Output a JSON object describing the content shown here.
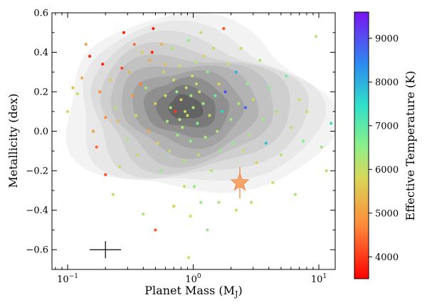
{
  "chart_data": {
    "type": "scatter",
    "xlabel": "Planet Mass (M",
    "xlabel_sub": "J",
    "xlabel_close": ")",
    "ylabel": "Metallicity (dex)",
    "colorbar_label": "Effective Temperature (K)",
    "x_scale": "log",
    "xlim": [
      0.075,
      13.5
    ],
    "ylim": [
      -0.7,
      0.6
    ],
    "x_ticks": [
      {
        "value": 0.1,
        "base": "10",
        "exp": "−1"
      },
      {
        "value": 1,
        "base": "10",
        "exp": "0"
      },
      {
        "value": 10,
        "base": "10",
        "exp": "1"
      }
    ],
    "y_ticks": [
      -0.6,
      -0.4,
      -0.2,
      0.0,
      0.2,
      0.4,
      0.6
    ],
    "y_tick_labels": [
      "−0.6",
      "−0.4",
      "−0.2",
      "0.0",
      "0.2",
      "0.4",
      "0.6"
    ],
    "colorbar": {
      "range": [
        3500,
        9600
      ],
      "ticks": [
        4000,
        5000,
        6000,
        7000,
        8000,
        9000
      ],
      "tick_labels": [
        "4000",
        "5000",
        "6000",
        "7000",
        "8000",
        "9000"
      ],
      "colormap": "rainbow"
    },
    "density_contours": {
      "colors": [
        "#f3f3f3",
        "#e8e8e8",
        "#dcdcdc",
        "#cfcfcf",
        "#c2c2c2",
        "#b3b3b3",
        "#a3a3a3",
        "#8f8f8f",
        "#7a7a7a",
        "#636363"
      ],
      "center": {
        "mass": 0.85,
        "metallicity": 0.12
      }
    },
    "highlight_star": {
      "mass": 2.35,
      "metallicity": -0.26,
      "color": "#f7a36a",
      "errorbar_color": "#e8894a"
    },
    "typical_error": {
      "mass": 0.2,
      "metallicity": -0.6
    },
    "points": [
      {
        "mass": 0.14,
        "metallicity": 0.44,
        "teff": 5100
      },
      {
        "mass": 0.15,
        "metallicity": 0.38,
        "teff": 3900
      },
      {
        "mass": 0.19,
        "metallicity": 0.34,
        "teff": 3800
      },
      {
        "mass": 0.13,
        "metallicity": 0.27,
        "teff": 5200
      },
      {
        "mass": 0.12,
        "metallicity": 0.19,
        "teff": 6000
      },
      {
        "mass": 0.11,
        "metallicity": 0.22,
        "teff": 5400
      },
      {
        "mass": 0.18,
        "metallicity": 0.2,
        "teff": 4800
      },
      {
        "mass": 0.22,
        "metallicity": 0.26,
        "teff": 5600
      },
      {
        "mass": 0.24,
        "metallicity": 0.12,
        "teff": 6200
      },
      {
        "mass": 0.2,
        "metallicity": 0.07,
        "teff": 4700
      },
      {
        "mass": 0.16,
        "metallicity": 0.0,
        "teff": 5000
      },
      {
        "mass": 0.25,
        "metallicity": 0.05,
        "teff": 5500
      },
      {
        "mass": 0.17,
        "metallicity": -0.08,
        "teff": 4400
      },
      {
        "mass": 0.2,
        "metallicity": -0.22,
        "teff": 4200
      },
      {
        "mass": 0.26,
        "metallicity": -0.18,
        "teff": 6000
      },
      {
        "mass": 0.23,
        "metallicity": -0.32,
        "teff": 6100
      },
      {
        "mass": 0.1,
        "metallicity": 0.1,
        "teff": 5800
      },
      {
        "mass": 0.28,
        "metallicity": 0.5,
        "teff": 3800
      },
      {
        "mass": 0.31,
        "metallicity": 0.3,
        "teff": 5300
      },
      {
        "mass": 0.33,
        "metallicity": 0.18,
        "teff": 4900
      },
      {
        "mass": 0.35,
        "metallicity": 0.08,
        "teff": 5900
      },
      {
        "mass": 0.3,
        "metallicity": -0.04,
        "teff": 6300
      },
      {
        "mass": 0.36,
        "metallicity": -0.12,
        "teff": 6000
      },
      {
        "mass": 0.39,
        "metallicity": 0.4,
        "teff": 5700
      },
      {
        "mass": 0.42,
        "metallicity": 0.22,
        "teff": 6200
      },
      {
        "mass": 0.45,
        "metallicity": 0.36,
        "teff": 5200
      },
      {
        "mass": 0.48,
        "metallicity": 0.52,
        "teff": 3700
      },
      {
        "mass": 0.47,
        "metallicity": 0.4,
        "teff": 3800
      },
      {
        "mass": 0.5,
        "metallicity": 0.14,
        "teff": 5600
      },
      {
        "mass": 0.52,
        "metallicity": -0.06,
        "teff": 5800
      },
      {
        "mass": 0.55,
        "metallicity": -0.2,
        "teff": 6500
      },
      {
        "mass": 0.5,
        "metallicity": -0.5,
        "teff": 4300
      },
      {
        "mass": 0.58,
        "metallicity": 0.3,
        "teff": 6000
      },
      {
        "mass": 0.6,
        "metallicity": 0.18,
        "teff": 5900
      },
      {
        "mass": 0.62,
        "metallicity": 0.05,
        "teff": 6300
      },
      {
        "mass": 0.65,
        "metallicity": -0.1,
        "teff": 6100
      },
      {
        "mass": 0.68,
        "metallicity": 0.42,
        "teff": 6200
      },
      {
        "mass": 0.7,
        "metallicity": 0.26,
        "teff": 5800
      },
      {
        "mass": 0.72,
        "metallicity": 0.1,
        "teff": 4000
      },
      {
        "mass": 0.75,
        "metallicity": -0.02,
        "teff": 6400
      },
      {
        "mass": 0.78,
        "metallicity": 0.33,
        "teff": 6000
      },
      {
        "mass": 0.8,
        "metallicity": 0.16,
        "teff": 5700
      },
      {
        "mass": 0.82,
        "metallicity": 0.02,
        "teff": 6200
      },
      {
        "mass": 0.85,
        "metallicity": -0.15,
        "teff": 6300
      },
      {
        "mass": 0.88,
        "metallicity": 0.22,
        "teff": 6100
      },
      {
        "mass": 0.9,
        "metallicity": 0.08,
        "teff": 5900
      },
      {
        "mass": 0.92,
        "metallicity": 0.46,
        "teff": 6400
      },
      {
        "mass": 0.95,
        "metallicity": -0.05,
        "teff": 6600
      },
      {
        "mass": 0.98,
        "metallicity": 0.28,
        "teff": 6000
      },
      {
        "mass": 1.0,
        "metallicity": 0.12,
        "teff": 6300
      },
      {
        "mass": 1.02,
        "metallicity": -0.28,
        "teff": 6500
      },
      {
        "mass": 0.95,
        "metallicity": -0.43,
        "teff": 5800
      },
      {
        "mass": 0.92,
        "metallicity": -0.64,
        "teff": 6000
      },
      {
        "mass": 1.05,
        "metallicity": 0.35,
        "teff": 6200
      },
      {
        "mass": 1.08,
        "metallicity": 0.04,
        "teff": 6700
      },
      {
        "mass": 1.1,
        "metallicity": -0.12,
        "teff": 6100
      },
      {
        "mass": 1.12,
        "metallicity": 0.2,
        "teff": 5900
      },
      {
        "mass": 1.15,
        "metallicity": 0.5,
        "teff": 6100
      },
      {
        "mass": 1.2,
        "metallicity": 0.14,
        "teff": 6400
      },
      {
        "mass": 1.25,
        "metallicity": -0.03,
        "teff": 6300
      },
      {
        "mass": 1.3,
        "metallicity": 0.3,
        "teff": 6600
      },
      {
        "mass": 1.35,
        "metallicity": 0.08,
        "teff": 5900
      },
      {
        "mass": 1.4,
        "metallicity": -0.2,
        "teff": 6200
      },
      {
        "mass": 1.45,
        "metallicity": 0.42,
        "teff": 6000
      },
      {
        "mass": 1.5,
        "metallicity": 0.18,
        "teff": 6900
      },
      {
        "mass": 1.55,
        "metallicity": 0.0,
        "teff": 6300
      },
      {
        "mass": 1.6,
        "metallicity": 0.24,
        "teff": 5800
      },
      {
        "mass": 1.7,
        "metallicity": 0.1,
        "teff": 7600
      },
      {
        "mass": 1.65,
        "metallicity": -0.1,
        "teff": 6500
      },
      {
        "mass": 1.8,
        "metallicity": 0.2,
        "teff": 9000
      },
      {
        "mass": 1.75,
        "metallicity": 0.52,
        "teff": 4200
      },
      {
        "mass": 1.9,
        "metallicity": 0.34,
        "teff": 6100
      },
      {
        "mass": 2.0,
        "metallicity": 0.06,
        "teff": 6400
      },
      {
        "mass": 2.1,
        "metallicity": -0.06,
        "teff": 6600
      },
      {
        "mass": 2.2,
        "metallicity": 0.3,
        "teff": 8000
      },
      {
        "mass": 2.3,
        "metallicity": 0.14,
        "teff": 6200
      },
      {
        "mass": 2.4,
        "metallicity": 0.42,
        "teff": 6000
      },
      {
        "mass": 2.5,
        "metallicity": -0.1,
        "teff": 6100
      },
      {
        "mass": 2.6,
        "metallicity": 0.12,
        "teff": 8800
      },
      {
        "mass": 2.7,
        "metallicity": 0.24,
        "teff": 6500
      },
      {
        "mass": 2.8,
        "metallicity": -0.02,
        "teff": 6300
      },
      {
        "mass": 3.0,
        "metallicity": 0.16,
        "teff": 6000
      },
      {
        "mass": 3.2,
        "metallicity": -0.16,
        "teff": 5800
      },
      {
        "mass": 3.4,
        "metallicity": 0.36,
        "teff": 6200
      },
      {
        "mass": 3.6,
        "metallicity": 0.06,
        "teff": 6400
      },
      {
        "mass": 3.8,
        "metallicity": -0.06,
        "teff": 7800
      },
      {
        "mass": 4.0,
        "metallicity": 0.22,
        "teff": 6600
      },
      {
        "mass": 4.3,
        "metallicity": -0.26,
        "teff": 5900
      },
      {
        "mass": 4.6,
        "metallicity": 0.1,
        "teff": 6100
      },
      {
        "mass": 5.0,
        "metallicity": -0.12,
        "teff": 6200
      },
      {
        "mass": 5.5,
        "metallicity": 0.28,
        "teff": 6800
      },
      {
        "mass": 6.0,
        "metallicity": 0.02,
        "teff": 6000
      },
      {
        "mass": 6.5,
        "metallicity": -0.32,
        "teff": 6300
      },
      {
        "mass": 7.0,
        "metallicity": 0.16,
        "teff": 5900
      },
      {
        "mass": 7.5,
        "metallicity": -0.05,
        "teff": 6600
      },
      {
        "mass": 8.0,
        "metallicity": 0.1,
        "teff": 6000
      },
      {
        "mass": 9.5,
        "metallicity": 0.48,
        "teff": 6200
      },
      {
        "mass": 10.5,
        "metallicity": -0.08,
        "teff": 6400
      },
      {
        "mass": 11.5,
        "metallicity": -0.2,
        "teff": 6100
      },
      {
        "mass": 12.5,
        "metallicity": 0.04,
        "teff": 7300
      },
      {
        "mass": 2.2,
        "metallicity": -0.4,
        "teff": 6100
      },
      {
        "mass": 1.6,
        "metallicity": -0.36,
        "teff": 6300
      },
      {
        "mass": 1.3,
        "metallicity": -0.5,
        "teff": 6500
      },
      {
        "mass": 0.7,
        "metallicity": -0.38,
        "teff": 5700
      },
      {
        "mass": 0.4,
        "metallicity": -0.42,
        "teff": 6200
      },
      {
        "mass": 0.85,
        "metallicity": -0.28,
        "teff": 6000
      },
      {
        "mass": 1.15,
        "metallicity": -0.36,
        "teff": 6400
      },
      {
        "mass": 2.9,
        "metallicity": -0.36,
        "teff": 6000
      },
      {
        "mass": 0.66,
        "metallicity": 0.12,
        "teff": 6200
      },
      {
        "mass": 0.74,
        "metallicity": 0.2,
        "teff": 6500
      },
      {
        "mass": 0.86,
        "metallicity": 0.1,
        "teff": 6000
      },
      {
        "mass": 0.96,
        "metallicity": 0.18,
        "teff": 6400
      },
      {
        "mass": 1.06,
        "metallicity": 0.24,
        "teff": 6100
      },
      {
        "mass": 0.78,
        "metallicity": 0.06,
        "teff": 6300
      },
      {
        "mass": 0.6,
        "metallicity": 0.34,
        "teff": 5500
      },
      {
        "mass": 0.56,
        "metallicity": 0.44,
        "teff": 5300
      },
      {
        "mass": 1.22,
        "metallicity": 0.38,
        "teff": 5700
      },
      {
        "mass": 0.44,
        "metallicity": 0.0,
        "teff": 5100
      },
      {
        "mass": 0.38,
        "metallicity": 0.24,
        "teff": 4600
      },
      {
        "mass": 0.34,
        "metallicity": 0.44,
        "teff": 4500
      },
      {
        "mass": 0.27,
        "metallicity": 0.32,
        "teff": 4100
      }
    ]
  }
}
